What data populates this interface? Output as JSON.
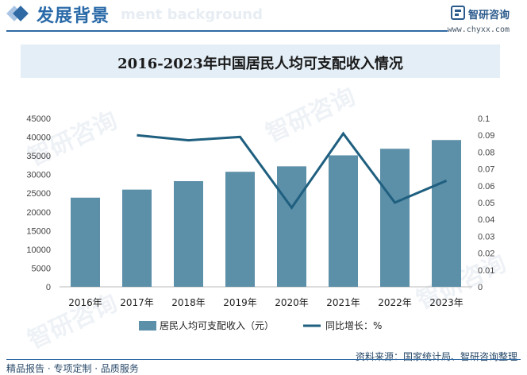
{
  "header": {
    "title": "发展背景",
    "subtitle_en": "ment background",
    "brand_name": "智研咨询",
    "brand_url": "www.chyxx.com"
  },
  "watermarks": [
    "智研咨询",
    "智研咨询",
    "智研咨询",
    "智研咨询"
  ],
  "chart_data": {
    "type": "bar",
    "title": "2016-2023年中国居民人均可支配收入情况",
    "categories": [
      "2016年",
      "2017年",
      "2018年",
      "2019年",
      "2020年",
      "2021年",
      "2022年",
      "2023年"
    ],
    "series": [
      {
        "name": "居民人均可支配收入（元）",
        "type": "bar",
        "axis": "left",
        "color": "#5c8fa8",
        "values": [
          23821,
          25974,
          28228,
          30733,
          32189,
          35128,
          36883,
          39218
        ]
      },
      {
        "name": "同比增长：%",
        "type": "line",
        "axis": "right",
        "color": "#1f5f7f",
        "values": [
          null,
          0.09,
          0.087,
          0.089,
          0.047,
          0.091,
          0.05,
          0.063
        ]
      }
    ],
    "y_left": {
      "min": 0,
      "max": 45000,
      "step": 5000,
      "ticks": [
        "0",
        "5000",
        "10000",
        "15000",
        "20000",
        "25000",
        "30000",
        "35000",
        "40000",
        "45000"
      ]
    },
    "y_right": {
      "min": 0,
      "max": 0.1,
      "step": 0.01,
      "ticks": [
        "0",
        "0.01",
        "0.02",
        "0.03",
        "0.04",
        "0.05",
        "0.06",
        "0.07",
        "0.08",
        "0.09",
        "0.1"
      ]
    },
    "legend_position": "bottom",
    "grid": false
  },
  "footer": {
    "left": "精品报告 · 专项定制 · 品质服务",
    "right": "资料来源：国家统计局、智研咨询整理"
  }
}
